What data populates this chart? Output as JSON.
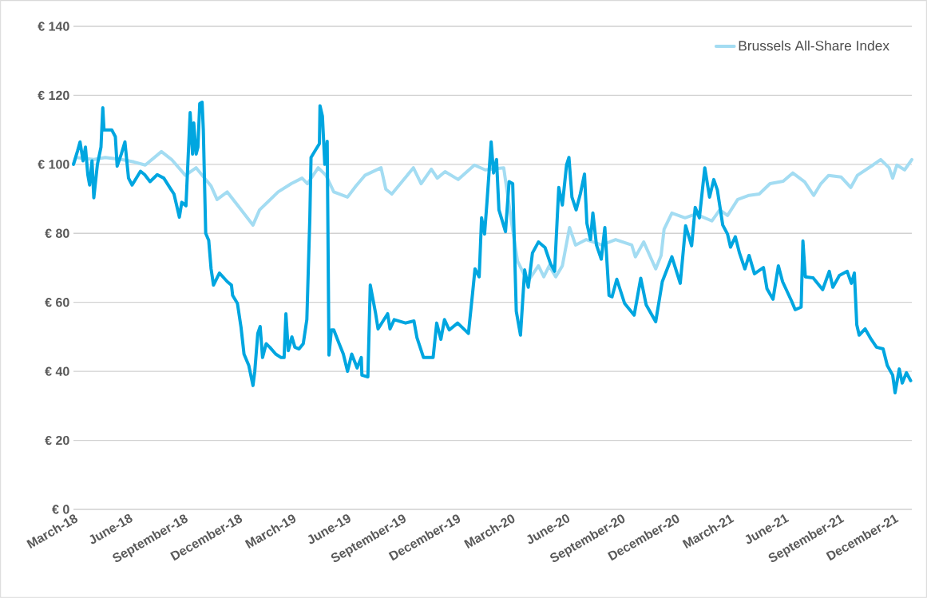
{
  "chart_data": {
    "type": "line",
    "xlim": [
      "2018-03-01",
      "2021-12-31"
    ],
    "ylim": [
      0,
      140
    ],
    "xticks": [
      {
        "value": "2018-03-01",
        "label": "March-18"
      },
      {
        "value": "2018-06-01",
        "label": "June-18"
      },
      {
        "value": "2018-09-01",
        "label": "September-18"
      },
      {
        "value": "2018-12-01",
        "label": "December-18"
      },
      {
        "value": "2019-03-01",
        "label": "March-19"
      },
      {
        "value": "2019-06-01",
        "label": "June-19"
      },
      {
        "value": "2019-09-01",
        "label": "September-19"
      },
      {
        "value": "2019-12-01",
        "label": "December-19"
      },
      {
        "value": "2020-03-01",
        "label": "March-20"
      },
      {
        "value": "2020-06-01",
        "label": "June-20"
      },
      {
        "value": "2020-09-01",
        "label": "September-20"
      },
      {
        "value": "2020-12-01",
        "label": "December-20"
      },
      {
        "value": "2021-03-01",
        "label": "March-21"
      },
      {
        "value": "2021-06-01",
        "label": "June-21"
      },
      {
        "value": "2021-09-01",
        "label": "September-21"
      },
      {
        "value": "2021-12-01",
        "label": "December-21"
      }
    ],
    "yticks": [
      {
        "value": 0,
        "label": "€ 0"
      },
      {
        "value": 20,
        "label": "€ 20"
      },
      {
        "value": 40,
        "label": "€ 40"
      },
      {
        "value": 60,
        "label": "€ 60"
      },
      {
        "value": 80,
        "label": "€ 80"
      },
      {
        "value": 100,
        "label": "€ 100"
      },
      {
        "value": 120,
        "label": "€ 120"
      },
      {
        "value": 140,
        "label": "€ 140"
      }
    ],
    "grid": "y",
    "legend": "top right",
    "marker": "none",
    "line_style": "solid",
    "series": [
      {
        "name": "Brussels All-Share Index",
        "color": "#a3dcf2",
        "x": [
          "2018-03-01",
          "2018-03-05",
          "2018-04-04",
          "2018-04-23",
          "2018-05-20",
          "2018-06-10",
          "2018-06-29",
          "2018-07-26",
          "2018-08-12",
          "2018-09-04",
          "2018-09-22",
          "2018-10-17",
          "2018-10-27",
          "2018-11-13",
          "2018-11-30",
          "2018-12-26",
          "2019-01-06",
          "2019-02-06",
          "2019-02-28",
          "2019-03-18",
          "2019-03-27",
          "2019-04-14",
          "2019-04-27",
          "2019-05-10",
          "2019-06-02",
          "2019-06-16",
          "2019-07-01",
          "2019-07-28",
          "2019-08-05",
          "2019-08-15",
          "2019-09-20",
          "2019-10-03",
          "2019-10-20",
          "2019-10-30",
          "2019-11-12",
          "2019-12-04",
          "2019-12-31",
          "2020-01-18",
          "2020-02-18",
          "2020-03-03",
          "2020-03-12",
          "2020-03-29",
          "2020-04-16",
          "2020-04-25",
          "2020-05-04",
          "2020-05-15",
          "2020-05-26",
          "2020-06-07",
          "2020-06-17",
          "2020-07-05",
          "2020-07-31",
          "2020-08-23",
          "2020-09-19",
          "2020-09-25",
          "2020-10-09",
          "2020-10-29",
          "2020-11-07",
          "2020-11-12",
          "2020-11-25",
          "2020-12-17",
          "2021-01-04",
          "2021-01-31",
          "2021-02-13",
          "2021-02-26",
          "2021-03-15",
          "2021-04-03",
          "2021-04-20",
          "2021-05-08",
          "2021-05-30",
          "2021-06-15",
          "2021-07-05",
          "2021-07-20",
          "2021-08-01",
          "2021-08-14",
          "2021-09-04",
          "2021-09-20",
          "2021-10-01",
          "2021-10-27",
          "2021-11-09",
          "2021-11-23",
          "2021-11-29",
          "2021-12-06",
          "2021-12-19",
          "2021-12-31"
        ],
        "values": [
          100,
          102,
          101.4,
          102,
          101.4,
          100.7,
          99.8,
          103.7,
          101.4,
          96.8,
          99,
          93.7,
          89.8,
          92,
          88.2,
          82.4,
          86.8,
          92,
          94.4,
          96,
          94.4,
          99,
          96.8,
          92,
          90.5,
          93.7,
          96.8,
          99,
          92.8,
          91.4,
          99,
          94.4,
          98.6,
          96,
          97.9,
          95.6,
          99.8,
          98.4,
          99,
          82.2,
          72,
          66,
          70.6,
          67.4,
          70.6,
          67.4,
          70.6,
          81.7,
          76.6,
          78.2,
          76.6,
          78.2,
          76.6,
          73.2,
          77.5,
          69.7,
          73.6,
          81.2,
          85.9,
          84.5,
          85.6,
          83.6,
          86.8,
          85.2,
          89.8,
          91,
          91.4,
          94.4,
          95.1,
          97.5,
          94.9,
          91,
          94.4,
          96.8,
          96.3,
          93.3,
          96.8,
          99.8,
          101.4,
          99,
          96,
          99.8,
          98.4,
          101.4
        ]
      },
      {
        "color": "#00a6e0",
        "x": [
          "2018-03-01",
          "2018-03-08",
          "2018-03-12",
          "2018-03-17",
          "2018-03-21",
          "2018-03-25",
          "2018-03-28",
          "2018-04-01",
          "2018-04-04",
          "2018-04-10",
          "2018-04-16",
          "2018-04-19",
          "2018-04-21",
          "2018-04-28",
          "2018-05-04",
          "2018-05-10",
          "2018-05-13",
          "2018-05-20",
          "2018-05-26",
          "2018-06-01",
          "2018-06-07",
          "2018-06-21",
          "2018-06-28",
          "2018-07-07",
          "2018-07-19",
          "2018-07-30",
          "2018-08-10",
          "2018-08-16",
          "2018-08-25",
          "2018-08-29",
          "2018-09-05",
          "2018-09-12",
          "2018-09-16",
          "2018-09-18",
          "2018-09-22",
          "2018-09-25",
          "2018-09-28",
          "2018-10-02",
          "2018-10-04",
          "2018-10-08",
          "2018-10-13",
          "2018-10-17",
          "2018-10-21",
          "2018-10-31",
          "2018-11-13",
          "2018-11-20",
          "2018-11-22",
          "2018-11-30",
          "2018-12-06",
          "2018-12-11",
          "2018-12-19",
          "2018-12-26",
          "2018-12-29",
          "2019-01-03",
          "2019-01-07",
          "2019-01-11",
          "2019-01-17",
          "2019-01-23",
          "2019-02-02",
          "2019-02-11",
          "2019-02-16",
          "2019-02-19",
          "2019-02-23",
          "2019-03-01",
          "2019-03-06",
          "2019-03-13",
          "2019-03-20",
          "2019-03-26",
          "2019-03-31",
          "2019-04-02",
          "2019-04-09",
          "2019-04-16",
          "2019-04-17",
          "2019-04-21",
          "2019-04-25",
          "2019-04-29",
          "2019-05-02",
          "2019-05-06",
          "2019-05-10",
          "2019-05-19",
          "2019-05-26",
          "2019-06-02",
          "2019-06-09",
          "2019-06-18",
          "2019-06-25",
          "2019-06-26",
          "2019-07-06",
          "2019-07-10",
          "2019-07-15",
          "2019-07-19",
          "2019-07-23",
          "2019-08-08",
          "2019-08-12",
          "2019-08-19",
          "2019-09-07",
          "2019-09-21",
          "2019-09-26",
          "2019-10-07",
          "2019-10-23",
          "2019-10-29",
          "2019-11-05",
          "2019-11-11",
          "2019-11-19",
          "2019-12-03",
          "2019-12-21",
          "2019-12-28",
          "2020-01-01",
          "2020-01-08",
          "2020-01-12",
          "2020-01-17",
          "2020-01-21",
          "2020-01-28",
          "2020-02-01",
          "2020-02-06",
          "2020-02-10",
          "2020-02-21",
          "2020-02-27",
          "2020-03-04",
          "2020-03-10",
          "2020-03-17",
          "2020-03-24",
          "2020-03-30",
          "2020-04-06",
          "2020-04-16",
          "2020-04-27",
          "2020-05-06",
          "2020-05-13",
          "2020-05-20",
          "2020-05-26",
          "2020-06-02",
          "2020-06-06",
          "2020-06-11",
          "2020-06-18",
          "2020-06-25",
          "2020-07-02",
          "2020-07-06",
          "2020-07-12",
          "2020-07-16",
          "2020-07-22",
          "2020-07-30",
          "2020-08-05",
          "2020-08-12",
          "2020-08-17",
          "2020-08-25",
          "2020-09-07",
          "2020-09-23",
          "2020-10-04",
          "2020-10-13",
          "2020-10-29",
          "2020-11-09",
          "2020-11-25",
          "2020-12-09",
          "2020-12-18",
          "2020-12-28",
          "2021-01-03",
          "2021-01-10",
          "2021-01-19",
          "2021-01-27",
          "2021-02-03",
          "2021-02-09",
          "2021-02-18",
          "2021-02-26",
          "2021-03-03",
          "2021-03-11",
          "2021-03-18",
          "2021-03-27",
          "2021-04-03",
          "2021-04-12",
          "2021-04-27",
          "2021-05-03",
          "2021-05-13",
          "2021-05-22",
          "2021-05-29",
          "2021-06-13",
          "2021-06-19",
          "2021-06-29",
          "2021-07-02",
          "2021-07-06",
          "2021-07-19",
          "2021-08-04",
          "2021-08-15",
          "2021-08-21",
          "2021-09-01",
          "2021-09-14",
          "2021-09-21",
          "2021-09-26",
          "2021-09-30",
          "2021-10-04",
          "2021-10-14",
          "2021-10-24",
          "2021-11-02",
          "2021-11-13",
          "2021-11-20",
          "2021-11-29",
          "2021-12-03",
          "2021-12-10",
          "2021-12-15",
          "2021-12-22",
          "2021-12-29"
        ],
        "values": [
          100,
          104,
          106.5,
          101,
          105,
          97,
          94,
          101,
          90.3,
          100,
          105,
          116.4,
          110,
          110,
          110,
          108,
          99.5,
          103,
          106.5,
          96,
          94,
          98,
          97,
          95,
          97,
          96,
          93,
          91.4,
          84.7,
          89,
          88,
          115,
          103,
          112,
          103,
          105,
          117.6,
          118,
          110,
          80,
          78,
          69.7,
          65,
          68.5,
          66,
          65,
          62,
          59.7,
          52.8,
          45,
          41.7,
          35.9,
          40,
          51,
          53,
          44,
          48,
          47,
          45,
          44,
          44,
          56.7,
          46,
          50,
          47,
          46.5,
          48,
          55,
          84.5,
          102,
          104,
          106,
          117,
          114,
          100,
          106.7,
          44.7,
          52,
          52,
          48,
          45,
          40,
          45,
          41,
          44,
          38.9,
          38.4,
          65,
          60.4,
          56.7,
          52.3,
          56.7,
          52.3,
          55,
          54,
          54.6,
          49.8,
          44,
          44,
          54,
          49.3,
          55,
          52,
          54,
          51,
          62.7,
          69.7,
          67.4,
          84.5,
          79.8,
          89,
          106.5,
          97.5,
          101.4,
          86.8,
          80.5,
          95,
          94.4,
          57.4,
          50.5,
          69.4,
          64.4,
          74.3,
          77.5,
          75.9,
          71.3,
          69,
          93.3,
          88.2,
          99.8,
          102,
          90.5,
          86.8,
          91.4,
          97.2,
          82.9,
          78.2,
          85.9,
          76.6,
          72.5,
          81.7,
          62,
          61.6,
          66.7,
          59.7,
          56.3,
          67,
          59.3,
          54.4,
          66,
          73.2,
          65.5,
          82.2,
          76.4,
          87.5,
          84.5,
          99,
          90.5,
          95.6,
          92.6,
          82.4,
          79.8,
          76,
          79,
          74.3,
          69.7,
          73.6,
          68.3,
          70.1,
          63.9,
          60.9,
          70.6,
          66,
          60.4,
          57.9,
          58.6,
          77.8,
          67.4,
          67.1,
          63.7,
          69,
          64.4,
          67.8,
          69,
          65.5,
          68.5,
          53.5,
          50.5,
          52.3,
          49.3,
          47,
          46.5,
          41.7,
          38.9,
          33.8,
          40.7,
          36.6,
          39.6,
          37.3
        ]
      }
    ]
  }
}
